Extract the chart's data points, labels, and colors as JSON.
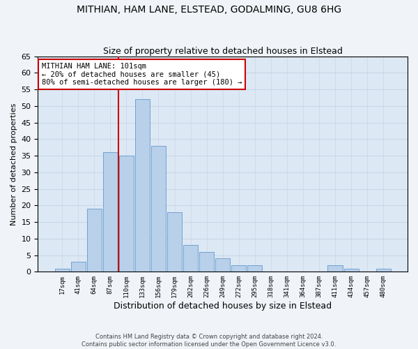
{
  "title1": "MITHIAN, HAM LANE, ELSTEAD, GODALMING, GU8 6HG",
  "title2": "Size of property relative to detached houses in Elstead",
  "xlabel": "Distribution of detached houses by size in Elstead",
  "ylabel": "Number of detached properties",
  "footer1": "Contains HM Land Registry data © Crown copyright and database right 2024.",
  "footer2": "Contains public sector information licensed under the Open Government Licence v3.0.",
  "bar_labels": [
    "17sqm",
    "41sqm",
    "64sqm",
    "87sqm",
    "110sqm",
    "133sqm",
    "156sqm",
    "179sqm",
    "202sqm",
    "226sqm",
    "249sqm",
    "272sqm",
    "295sqm",
    "318sqm",
    "341sqm",
    "364sqm",
    "387sqm",
    "411sqm",
    "434sqm",
    "457sqm",
    "480sqm"
  ],
  "bar_values": [
    1,
    3,
    19,
    36,
    35,
    52,
    38,
    18,
    8,
    6,
    4,
    2,
    2,
    0,
    0,
    0,
    0,
    2,
    1,
    0,
    1
  ],
  "bar_color": "#b8d0ea",
  "bar_edge_color": "#6699cc",
  "highlight_label": "MITHIAN HAM LANE: 101sqm",
  "annotation_line1": "← 20% of detached houses are smaller (45)",
  "annotation_line2": "80% of semi-detached houses are larger (180) →",
  "vline_color": "#cc0000",
  "vline_x": 3.5,
  "annotation_box_color": "#ffffff",
  "annotation_box_edge": "#cc0000",
  "ylim": [
    0,
    65
  ],
  "yticks": [
    0,
    5,
    10,
    15,
    20,
    25,
    30,
    35,
    40,
    45,
    50,
    55,
    60,
    65
  ],
  "grid_color": "#c8d8e8",
  "bg_color": "#dce8f4",
  "title1_fontsize": 10,
  "title2_fontsize": 9,
  "fig_width": 6.0,
  "fig_height": 5.0
}
